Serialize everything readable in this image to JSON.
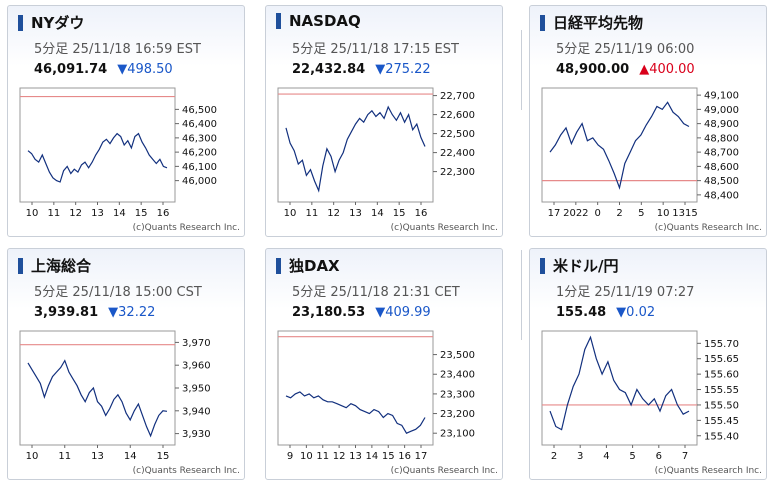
{
  "panels": [
    {
      "title": "NYダウ",
      "sub": "5分足 25/11/18 16:59 EST",
      "value": "46,091.74",
      "change": "▼498.50",
      "dir": "down"
    },
    {
      "title": "NASDAQ",
      "sub": "5分足 25/11/18 17:15 EST",
      "value": "22,432.84",
      "change": "▼275.22",
      "dir": "down"
    },
    {
      "title": "日経平均先物",
      "sub": "5分足 25/11/19 06:00",
      "value": "48,900.00",
      "change": "▲400.00",
      "dir": "up"
    },
    {
      "title": "上海総合",
      "sub": "5分足 25/11/18 15:00 CST",
      "value": "3,939.81",
      "change": "▼32.22",
      "dir": "down"
    },
    {
      "title": "独DAX",
      "sub": "5分足 25/11/18 21:31 CET",
      "value": "23,180.53",
      "change": "▼409.99",
      "dir": "down"
    },
    {
      "title": "米ドル/円",
      "sub": "1分足 25/11/19 07:27",
      "value": "155.48",
      "change": "▼0.02",
      "dir": "down"
    }
  ],
  "colors": {
    "line": "#12307e",
    "ref": "#e68a8a",
    "down": "#1a57c8",
    "up": "#d9001b"
  },
  "chart_data": [
    {
      "type": "line",
      "ylim": [
        45850,
        46650
      ],
      "yticks": [
        46500,
        46400,
        46300,
        46200,
        46100,
        46000
      ],
      "ref": 46590,
      "xticks": [
        "10",
        "11",
        "12",
        "13",
        "14",
        "15",
        "16"
      ],
      "copyright": "(c)Quants Research Inc.",
      "series": [
        {
          "values": [
            46210,
            46190,
            46150,
            46130,
            46180,
            46120,
            46060,
            46020,
            46000,
            45990,
            46070,
            46100,
            46050,
            46080,
            46060,
            46110,
            46130,
            46090,
            46130,
            46180,
            46220,
            46270,
            46290,
            46260,
            46300,
            46330,
            46310,
            46250,
            46280,
            46230,
            46310,
            46330,
            46270,
            46230,
            46180,
            46150,
            46120,
            46150,
            46100,
            46090
          ]
        }
      ]
    },
    {
      "type": "line",
      "ylim": [
        22140,
        22740
      ],
      "yticks": [
        22700,
        22600,
        22500,
        22400,
        22300
      ],
      "ref": 22708,
      "xticks": [
        "10",
        "11",
        "12",
        "13",
        "14",
        "15",
        "16"
      ],
      "copyright": "(c)Quants Research Inc.",
      "series": [
        {
          "values": [
            22530,
            22450,
            22410,
            22340,
            22360,
            22280,
            22310,
            22250,
            22200,
            22330,
            22420,
            22380,
            22300,
            22360,
            22400,
            22470,
            22510,
            22550,
            22580,
            22560,
            22600,
            22620,
            22590,
            22610,
            22580,
            22640,
            22600,
            22570,
            22610,
            22560,
            22600,
            22520,
            22550,
            22480,
            22432
          ]
        }
      ]
    },
    {
      "type": "line",
      "ylim": [
        48350,
        49150
      ],
      "yticks": [
        49100,
        49000,
        48900,
        48800,
        48700,
        48600,
        48500,
        48400
      ],
      "ref": 48500,
      "xticks": [
        "17",
        "2022",
        "0",
        "2",
        "5",
        "10",
        "1315"
      ],
      "copyright": "(c)Quants Research Inc.",
      "series": [
        {
          "values": [
            48700,
            48750,
            48820,
            48870,
            48760,
            48840,
            48900,
            48780,
            48800,
            48750,
            48720,
            48640,
            48550,
            48450,
            48620,
            48700,
            48780,
            48820,
            48890,
            48950,
            49020,
            49000,
            49050,
            48980,
            48950,
            48900,
            48880
          ]
        }
      ]
    },
    {
      "type": "line",
      "ylim": [
        3925,
        3975
      ],
      "yticks": [
        3970,
        3960,
        3950,
        3940,
        3930
      ],
      "ref": 3969,
      "xticks": [
        "10",
        "11",
        "13",
        "14",
        "15"
      ],
      "copyright": "(c)Quants Research Inc.",
      "series": [
        {
          "values": [
            3961,
            3958,
            3955,
            3952,
            3946,
            3951,
            3955,
            3957,
            3959,
            3962,
            3957,
            3954,
            3951,
            3947,
            3944,
            3948,
            3950,
            3944,
            3942,
            3938,
            3941,
            3945,
            3947,
            3944,
            3939,
            3936,
            3940,
            3943,
            3938,
            3933,
            3929,
            3934,
            3938,
            3940,
            3939.8
          ]
        }
      ]
    },
    {
      "type": "line",
      "ylim": [
        23040,
        23620
      ],
      "yticks": [
        23500,
        23400,
        23300,
        23200,
        23100
      ],
      "ref": 23591,
      "xticks": [
        "9",
        "10",
        "11",
        "12",
        "13",
        "14",
        "15",
        "16",
        "17"
      ],
      "copyright": "(c)Quants Research Inc.",
      "series": [
        {
          "values": [
            23290,
            23280,
            23300,
            23310,
            23290,
            23300,
            23280,
            23290,
            23270,
            23260,
            23260,
            23250,
            23240,
            23230,
            23250,
            23240,
            23220,
            23210,
            23200,
            23220,
            23210,
            23180,
            23200,
            23190,
            23150,
            23140,
            23100,
            23110,
            23120,
            23140,
            23180
          ]
        }
      ]
    },
    {
      "type": "line",
      "ylim": [
        155.37,
        155.74
      ],
      "yticks": [
        155.7,
        155.65,
        155.6,
        155.55,
        155.5,
        155.45,
        155.4
      ],
      "ref": 155.5,
      "xticks": [
        "2",
        "3",
        "4",
        "5",
        "6",
        "7"
      ],
      "copyright": "(c)Quants Research Inc.",
      "series": [
        {
          "values": [
            155.48,
            155.43,
            155.42,
            155.5,
            155.56,
            155.6,
            155.68,
            155.72,
            155.65,
            155.6,
            155.64,
            155.58,
            155.55,
            155.54,
            155.5,
            155.55,
            155.52,
            155.5,
            155.52,
            155.48,
            155.53,
            155.55,
            155.5,
            155.47,
            155.48
          ]
        }
      ]
    }
  ]
}
